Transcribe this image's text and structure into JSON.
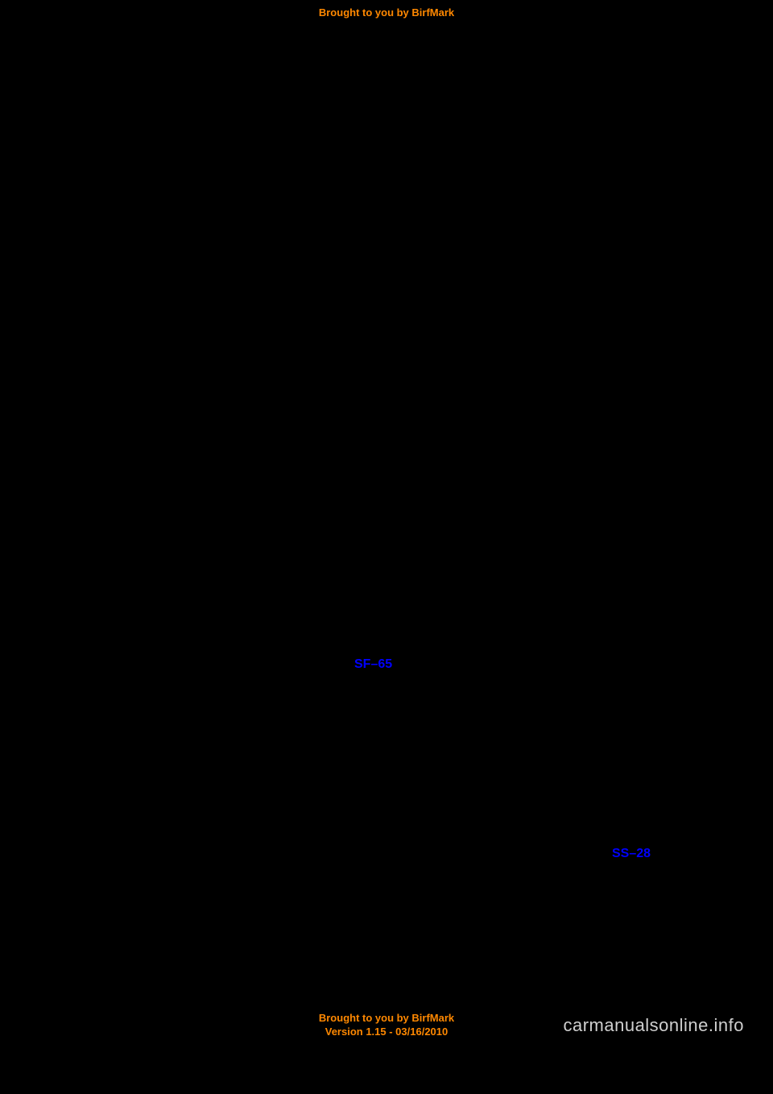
{
  "banner_top": "Brought to you by BirfMark",
  "links": {
    "sf": "SF–65",
    "ss": "SS–28"
  },
  "banner_bottom_line1": "Brought to you by BirfMark",
  "banner_bottom_line2": "Version 1.15 - 03/16/2010",
  "watermark": "carmanualsonline.info",
  "colors": {
    "background": "#000000",
    "banner": "#ff8800",
    "link": "#0000ff",
    "watermark": "#cfcfcf"
  }
}
